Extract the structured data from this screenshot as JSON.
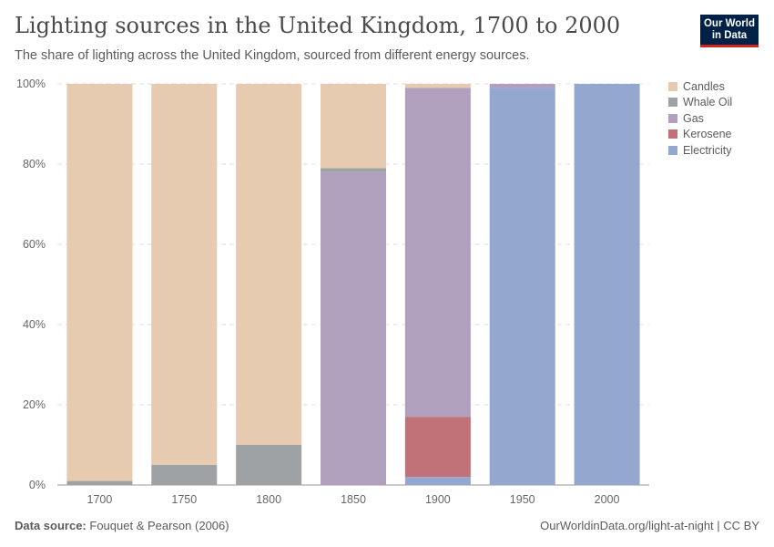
{
  "title": "Lighting sources in the United Kingdom, 1700 to 2000",
  "subtitle": "The share of lighting across the United Kingdom, sourced from different energy sources.",
  "logo": "Our World in Data",
  "footer": {
    "source_label": "Data source:",
    "source": "Fouquet & Pearson (2006)",
    "url": "OurWorldinData.org/light-at-night | CC BY"
  },
  "chart_data": {
    "type": "bar",
    "stacked": true,
    "categories": [
      "1700",
      "1750",
      "1800",
      "1850",
      "1900",
      "1950",
      "2000"
    ],
    "ylim": [
      0,
      100
    ],
    "yticks": [
      "0%",
      "20%",
      "40%",
      "60%",
      "80%",
      "100%"
    ],
    "grid": true,
    "legend": "right",
    "series": [
      {
        "name": "Electricity",
        "color": "#94a8cf",
        "values": [
          0,
          0,
          0,
          0,
          2,
          99,
          100
        ]
      },
      {
        "name": "Kerosene",
        "color": "#c17178",
        "values": [
          0,
          0,
          0,
          0,
          15,
          0,
          0
        ]
      },
      {
        "name": "Gas",
        "color": "#b09fbd",
        "values": [
          0,
          0,
          0,
          78,
          82,
          1,
          0
        ]
      },
      {
        "name": "Whale Oil",
        "color": "#9fa2a5",
        "values": [
          1,
          5,
          10,
          1,
          0,
          0,
          0
        ]
      },
      {
        "name": "Candles",
        "color": "#e6cbb0",
        "values": [
          99,
          95,
          90,
          21,
          1,
          0,
          0
        ]
      }
    ]
  }
}
